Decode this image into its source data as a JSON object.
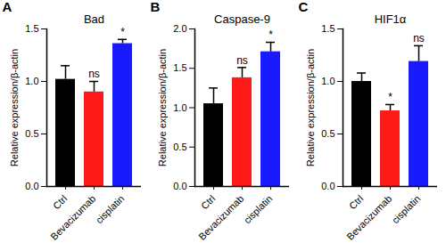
{
  "chart_data": [
    {
      "type": "bar",
      "panel": "A",
      "title": "Bad",
      "y_label": "Relative expression/β-actin",
      "categories": [
        "Ctrl",
        "Bevacizumab",
        "cisplatin"
      ],
      "values": [
        1.02,
        0.9,
        1.36
      ],
      "errors": [
        0.13,
        0.1,
        0.04
      ],
      "significance": [
        null,
        "ns",
        "*"
      ],
      "colors": [
        "#000000",
        "#ff1a1a",
        "#1a1aff"
      ],
      "ylim": [
        0,
        1.5
      ],
      "yticks": [
        {
          "value": 0,
          "label": "0.0"
        },
        {
          "value": 0.5,
          "label": "0.5"
        },
        {
          "value": 1,
          "label": "1.0"
        },
        {
          "value": 1.5,
          "label": "1.5"
        }
      ]
    },
    {
      "type": "bar",
      "panel": "B",
      "title": "Caspase-9",
      "y_label": "Relative expression/β-actin",
      "categories": [
        "Ctrl",
        "Bevacizumab",
        "cisplatin"
      ],
      "values": [
        1.05,
        1.38,
        1.71
      ],
      "errors": [
        0.2,
        0.13,
        0.12
      ],
      "significance": [
        null,
        "ns",
        "*"
      ],
      "colors": [
        "#000000",
        "#ff1a1a",
        "#1a1aff"
      ],
      "ylim": [
        0,
        2.0
      ],
      "yticks": [
        {
          "value": 0,
          "label": "0.0"
        },
        {
          "value": 0.5,
          "label": "0.5"
        },
        {
          "value": 1,
          "label": "1.0"
        },
        {
          "value": 1.5,
          "label": "1.5"
        },
        {
          "value": 2,
          "label": "2.0"
        }
      ]
    },
    {
      "type": "bar",
      "panel": "C",
      "title": "HIF1α",
      "y_label": "Relative expression/β-actin",
      "categories": [
        "Ctrl",
        "Bevacizumab",
        "cisplatin"
      ],
      "values": [
        1.0,
        0.72,
        1.19
      ],
      "errors": [
        0.08,
        0.06,
        0.15
      ],
      "significance": [
        null,
        "*",
        "ns"
      ],
      "colors": [
        "#000000",
        "#ff1a1a",
        "#1a1aff"
      ],
      "ylim": [
        0,
        1.5
      ],
      "yticks": [
        {
          "value": 0,
          "label": "0.0"
        },
        {
          "value": 0.5,
          "label": "0.5"
        },
        {
          "value": 1,
          "label": "1.0"
        },
        {
          "value": 1.5,
          "label": "1.5"
        }
      ]
    }
  ]
}
